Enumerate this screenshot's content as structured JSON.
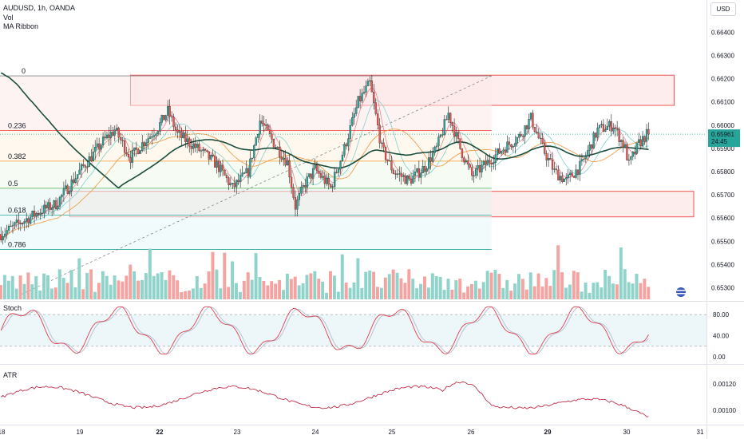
{
  "legend": {
    "symbol": "AUDUSD, 1h, OANDA",
    "vol": "Vol",
    "ma": "MA Ribbon"
  },
  "currency": "USD",
  "price_label": {
    "value": "0.65961",
    "countdown": "24:45"
  },
  "stoch_label": "Stoch",
  "atr_label": "ATR",
  "colors": {
    "up": "#26a69a",
    "down": "#ef5350",
    "vol_up": "#8fd3ca",
    "vol_down": "#f4a3a1",
    "ma_long": "#1b4d3e",
    "ma_mid": "#f0a050",
    "ma_fast": "#e05a6a",
    "ma_teal": "#7fd3d0",
    "zone_fill": "#fce6e6",
    "zone_stroke": "#ef5350",
    "stoch_k": "#e04050",
    "stoch_d": "#b0c0d0",
    "atr": "#c0304a",
    "fib_red": "#ef5350",
    "fib_orange": "#f29b2e",
    "fib_green": "#4caf50",
    "fib_teal": "#26a69a"
  },
  "chart_data": [
    {
      "type": "candlestick",
      "pane": "price",
      "ylim": [
        0.6525,
        0.6647
      ],
      "y_ticks": [
        "0.66400",
        "0.66300",
        "0.66200",
        "0.66100",
        "0.66000",
        "0.65900",
        "0.65800",
        "0.65700",
        "0.65600",
        "0.65500",
        "0.65400",
        "0.65300"
      ],
      "x_ticks": [
        "18",
        "19",
        "22",
        "23",
        "24",
        "25",
        "26",
        "29",
        "30",
        "31"
      ],
      "fib_levels": [
        {
          "label": "0",
          "value": 0.66212
        },
        {
          "label": "0.236",
          "value": 0.65977
        },
        {
          "label": "0.382",
          "value": 0.65845
        },
        {
          "label": "0.5",
          "value": 0.65728
        },
        {
          "label": "0.618",
          "value": 0.65613
        },
        {
          "label": "0.786",
          "value": 0.65465
        }
      ],
      "zones": [
        {
          "from_bar": 66,
          "to_bar": 343,
          "high": 0.66215,
          "low": 0.66085
        },
        {
          "from_bar": 35,
          "to_bar": 353,
          "high": 0.65715,
          "low": 0.65605
        }
      ],
      "last_price": 0.65961
    },
    {
      "type": "oscillator",
      "name": "Stoch",
      "ylim": [
        0,
        100
      ],
      "y_ticks": [
        "80.00",
        "40.00",
        "0.00"
      ],
      "bands": [
        80,
        20
      ]
    },
    {
      "type": "line",
      "name": "ATR",
      "ylim": [
        0.00092,
        0.00133
      ],
      "y_ticks": [
        "0.00120",
        "0.00100"
      ]
    }
  ]
}
